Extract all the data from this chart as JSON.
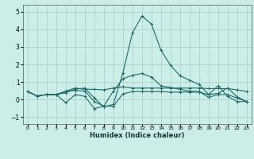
{
  "title": "",
  "xlabel": "Humidex (Indice chaleur)",
  "background_color": "#cceee8",
  "grid_color": "#aad4ce",
  "line_color": "#1a6b6b",
  "xlim": [
    -0.5,
    23.5
  ],
  "ylim": [
    -1.4,
    5.4
  ],
  "xticks": [
    0,
    1,
    2,
    3,
    4,
    5,
    6,
    7,
    8,
    9,
    10,
    11,
    12,
    13,
    14,
    15,
    16,
    17,
    18,
    19,
    20,
    21,
    22,
    23
  ],
  "yticks": [
    -1,
    0,
    1,
    2,
    3,
    4,
    5
  ],
  "series": [
    [
      0.45,
      0.2,
      0.28,
      0.28,
      0.38,
      0.6,
      0.65,
      0.08,
      -0.42,
      -0.28,
      1.5,
      3.8,
      4.75,
      4.3,
      2.8,
      1.95,
      1.35,
      1.1,
      0.85,
      0.28,
      0.78,
      0.18,
      -0.12,
      -0.12
    ],
    [
      0.45,
      0.2,
      0.28,
      0.28,
      0.48,
      0.65,
      0.58,
      0.58,
      0.55,
      0.65,
      0.72,
      0.65,
      0.65,
      0.65,
      0.65,
      0.65,
      0.65,
      0.65,
      0.65,
      0.62,
      0.62,
      0.62,
      0.55,
      0.45
    ],
    [
      0.45,
      0.2,
      0.28,
      0.28,
      -0.18,
      0.28,
      0.18,
      -0.52,
      -0.38,
      -0.38,
      0.32,
      0.45,
      0.45,
      0.45,
      0.45,
      0.42,
      0.42,
      0.42,
      0.42,
      0.28,
      0.35,
      0.65,
      0.15,
      -0.12
    ],
    [
      0.45,
      0.2,
      0.28,
      0.28,
      0.45,
      0.52,
      0.48,
      -0.12,
      -0.38,
      0.48,
      1.18,
      1.38,
      1.48,
      1.28,
      0.78,
      0.68,
      0.58,
      0.48,
      0.45,
      0.12,
      0.28,
      0.28,
      0.08,
      -0.12
    ]
  ]
}
